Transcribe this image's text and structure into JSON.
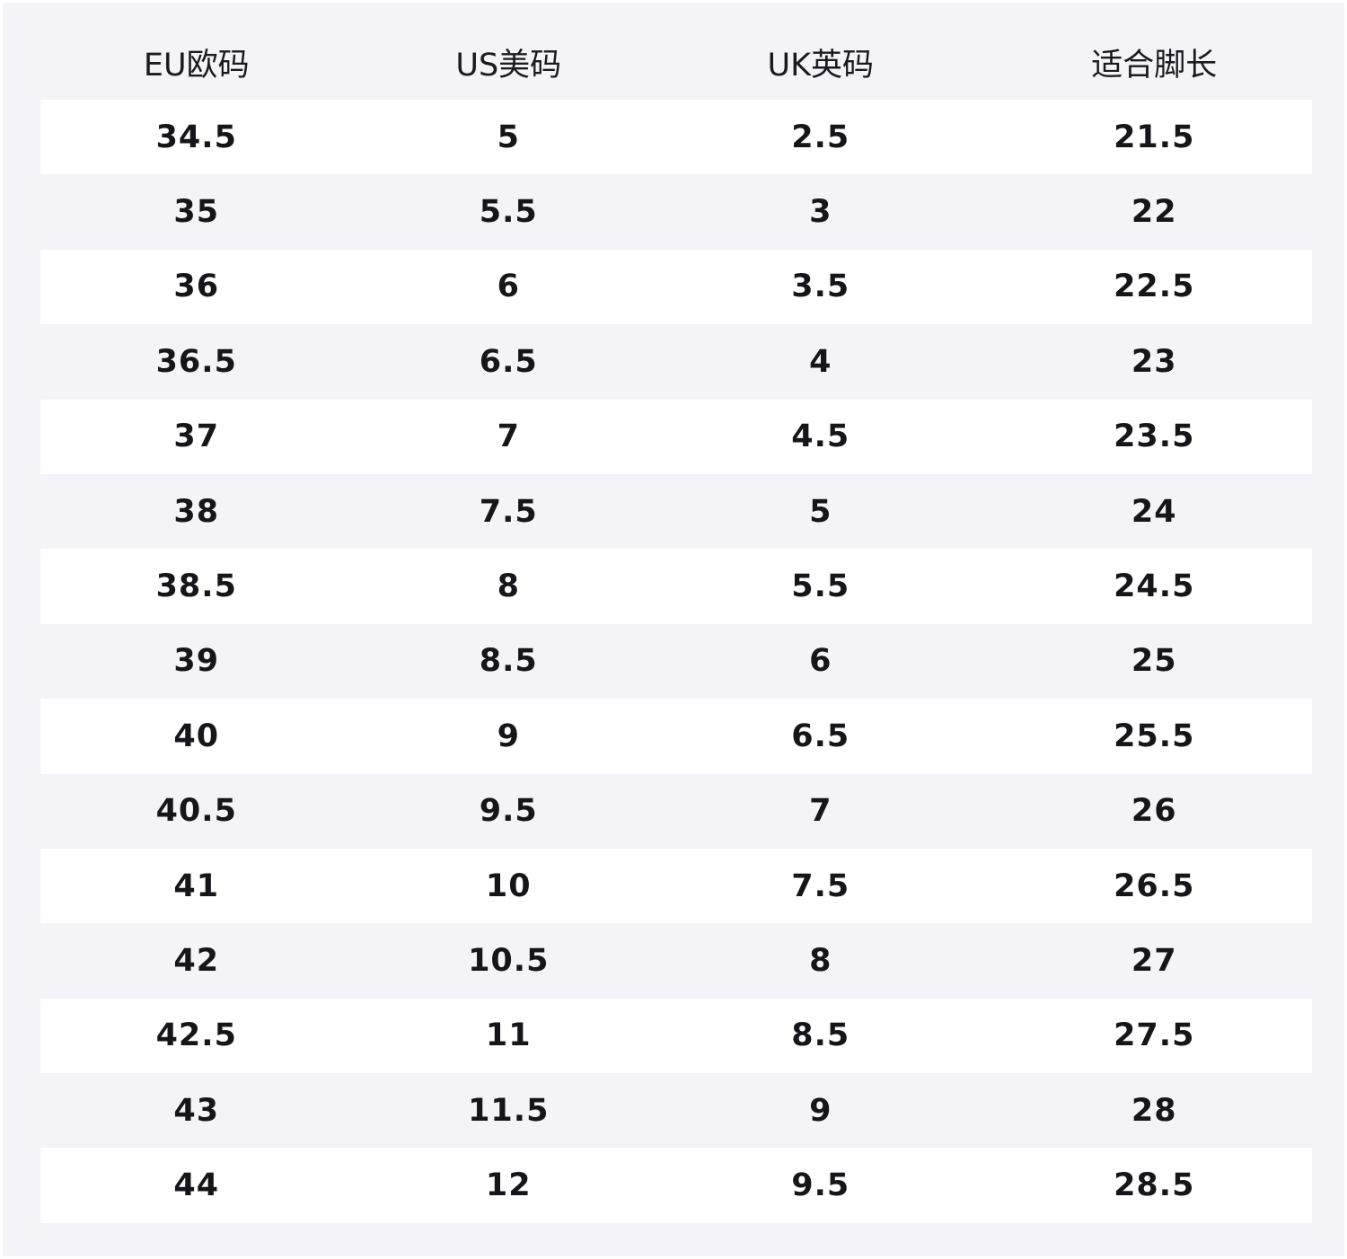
{
  "table": {
    "headers": [
      "EU欧码",
      "US美码",
      "UK英码",
      "适合脚长"
    ],
    "rows": [
      [
        "34.5",
        "5",
        "2.5",
        "21.5"
      ],
      [
        "35",
        "5.5",
        "3",
        "22"
      ],
      [
        "36",
        "6",
        "3.5",
        "22.5"
      ],
      [
        "36.5",
        "6.5",
        "4",
        "23"
      ],
      [
        "37",
        "7",
        "4.5",
        "23.5"
      ],
      [
        "38",
        "7.5",
        "5",
        "24"
      ],
      [
        "38.5",
        "8",
        "5.5",
        "24.5"
      ],
      [
        "39",
        "8.5",
        "6",
        "25"
      ],
      [
        "40",
        "9",
        "6.5",
        "25.5"
      ],
      [
        "40.5",
        "9.5",
        "7",
        "26"
      ],
      [
        "41",
        "10",
        "7.5",
        "26.5"
      ],
      [
        "42",
        "10.5",
        "8",
        "27"
      ],
      [
        "42.5",
        "11",
        "8.5",
        "27.5"
      ],
      [
        "43",
        "11.5",
        "9",
        "28"
      ],
      [
        "44",
        "12",
        "9.5",
        "28.5"
      ]
    ]
  },
  "colors": {
    "background": "#f3f3f8",
    "row_highlight": "#ffffff",
    "text": "#16161a"
  }
}
